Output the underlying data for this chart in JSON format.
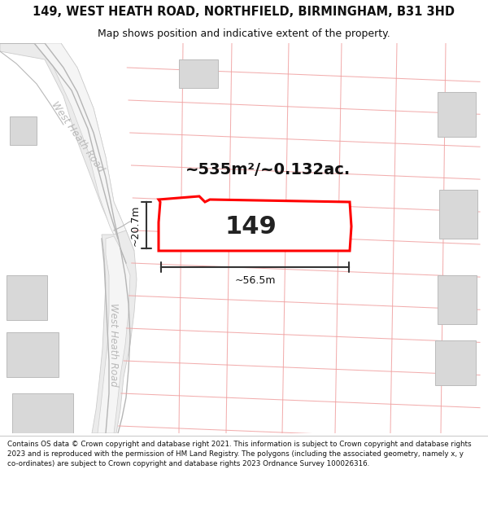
{
  "title_line1": "149, WEST HEATH ROAD, NORTHFIELD, BIRMINGHAM, B31 3HD",
  "title_line2": "Map shows position and indicative extent of the property.",
  "address_label": "149",
  "area_label": "~535m²/~0.132ac.",
  "width_label": "~56.5m",
  "height_label": "~20.7m",
  "road_label_upper": "West Heath Road",
  "road_label_lower": "West Heath Road",
  "copyright_text": "Contains OS data © Crown copyright and database right 2021. This information is subject to Crown copyright and database rights 2023 and is reproduced with the permission of HM Land Registry. The polygons (including the associated geometry, namely x, y co-ordinates) are subject to Crown copyright and database rights 2023 Ordnance Survey 100026316.",
  "map_bg": "#ffffff",
  "parcel_line_color": "#f0a0a0",
  "road_gray": "#cccccc",
  "highlight_color": "#ff0000",
  "title_color": "#000000",
  "gray_block_color": "#d8d8d8",
  "gray_block_edge": "#bbbbbb",
  "road_fill": "#e8e8e8",
  "road_label_color": "#b8b8b8"
}
